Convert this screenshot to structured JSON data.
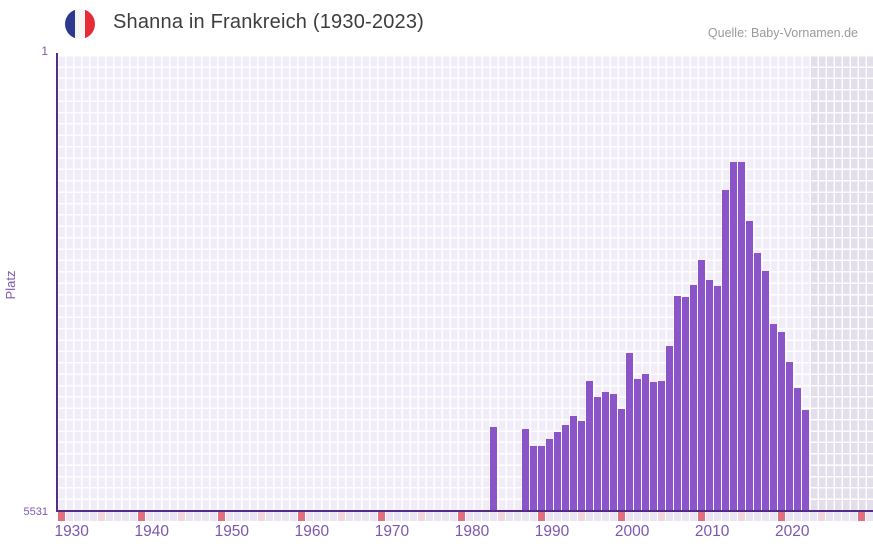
{
  "header": {
    "title": "Shanna in Frankreich (1930-2023)",
    "source": "Quelle: Baby-Vornamen.de",
    "flag_icon": "france-flag-circle"
  },
  "chart_data": {
    "type": "bar",
    "title": "Shanna in Frankreich (1930-2023)",
    "xlabel": "",
    "ylabel": "Platz",
    "y_axis": {
      "min": 1,
      "max": 5531,
      "top_label": "1",
      "bottom_label": "5531",
      "inverted": true,
      "note": "rank 1 at top, rank 5531 at bottom; bars rise from bottom"
    },
    "x_axis": {
      "start_year": 1930,
      "end_year": 2023,
      "tick_labels": [
        "1930",
        "1940",
        "1950",
        "1960",
        "1970",
        "1980",
        "1990",
        "2000",
        "2010",
        "2020"
      ]
    },
    "grid": true,
    "legend": "none",
    "bar_color": "#8b54c8",
    "background_color": "#f1edf8",
    "no_data_band": {
      "from_year": 2024,
      "color": "#e3dfea"
    },
    "timeline_strip": {
      "decade_color": "#e0707e",
      "half_decade_color": "#f5d6dd",
      "default_color": "#eae5f3",
      "last_year_drawn": 2031
    },
    "series": [
      {
        "name": "Platz von Shanna",
        "points": [
          {
            "year": 1984,
            "rank": 4520
          },
          {
            "year": 1988,
            "rank": 4550
          },
          {
            "year": 1989,
            "rank": 4750
          },
          {
            "year": 1990,
            "rank": 4750
          },
          {
            "year": 1991,
            "rank": 4670
          },
          {
            "year": 1992,
            "rank": 4580
          },
          {
            "year": 1993,
            "rank": 4500
          },
          {
            "year": 1994,
            "rank": 4390
          },
          {
            "year": 1995,
            "rank": 4450
          },
          {
            "year": 1996,
            "rank": 3960
          },
          {
            "year": 1997,
            "rank": 4160
          },
          {
            "year": 1998,
            "rank": 4100
          },
          {
            "year": 1999,
            "rank": 4120
          },
          {
            "year": 2000,
            "rank": 4300
          },
          {
            "year": 2001,
            "rank": 3620
          },
          {
            "year": 2002,
            "rank": 3940
          },
          {
            "year": 2003,
            "rank": 3880
          },
          {
            "year": 2004,
            "rank": 3980
          },
          {
            "year": 2005,
            "rank": 3960
          },
          {
            "year": 2006,
            "rank": 3540
          },
          {
            "year": 2007,
            "rank": 2930
          },
          {
            "year": 2008,
            "rank": 2940
          },
          {
            "year": 2009,
            "rank": 2800
          },
          {
            "year": 2010,
            "rank": 2490
          },
          {
            "year": 2011,
            "rank": 2740
          },
          {
            "year": 2012,
            "rank": 2810
          },
          {
            "year": 2013,
            "rank": 1640
          },
          {
            "year": 2014,
            "rank": 1300
          },
          {
            "year": 2015,
            "rank": 1300
          },
          {
            "year": 2016,
            "rank": 2020
          },
          {
            "year": 2017,
            "rank": 2410
          },
          {
            "year": 2018,
            "rank": 2630
          },
          {
            "year": 2019,
            "rank": 3270
          },
          {
            "year": 2020,
            "rank": 3370
          },
          {
            "year": 2021,
            "rank": 3730
          },
          {
            "year": 2022,
            "rank": 4050
          },
          {
            "year": 2023,
            "rank": 4320
          }
        ]
      }
    ]
  }
}
